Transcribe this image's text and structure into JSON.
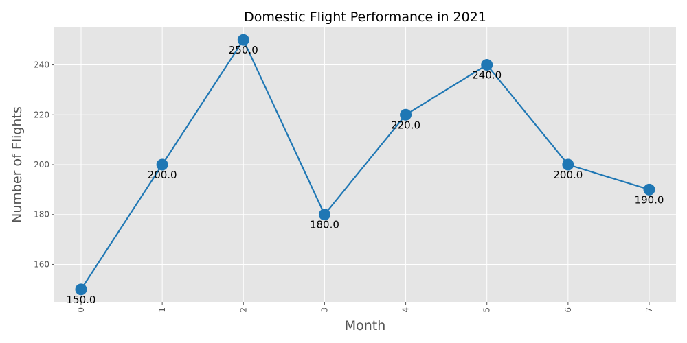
{
  "chart_data": {
    "type": "line",
    "title": "Domestic Flight Performance in 2021",
    "xlabel": "Month",
    "ylabel": "Number of Flights",
    "x": [
      0,
      1,
      2,
      3,
      4,
      5,
      6,
      7
    ],
    "x_tick_labels": [
      "0",
      "1",
      "2",
      "3",
      "4",
      "5",
      "6",
      "7"
    ],
    "y_ticks": [
      160,
      180,
      200,
      220,
      240
    ],
    "y_tick_labels": [
      "160",
      "180",
      "200",
      "220",
      "240"
    ],
    "xlim": [
      -0.33,
      7.33
    ],
    "ylim": [
      145,
      255
    ],
    "series": [
      {
        "values": [
          150,
          200,
          250,
          180,
          220,
          240,
          200,
          190
        ],
        "data_labels": [
          "150.0",
          "200.0",
          "250.0",
          "180.0",
          "220.0",
          "240.0",
          "200.0",
          "190.0"
        ],
        "color": "#1f77b4"
      }
    ],
    "grid": true,
    "background_color": "#e5e5e5",
    "grid_color": "#ffffff",
    "x_tick_rotation": "vertical"
  }
}
